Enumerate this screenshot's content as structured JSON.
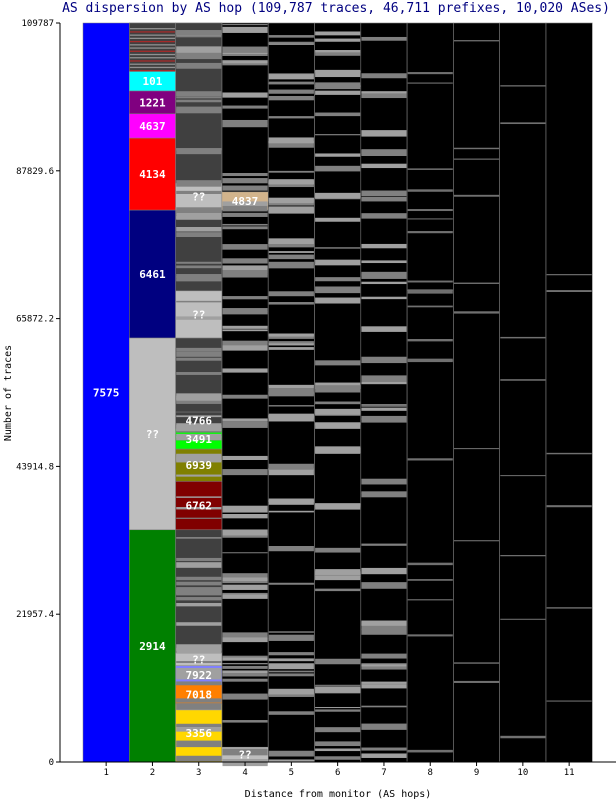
{
  "chart_data": {
    "type": "bar",
    "title": "AS dispersion by AS hop (109,787 traces, 46,711 prefixes, 10,020 ASes)",
    "xlabel": "Distance from monitor (AS hops)",
    "ylabel": "Number of traces",
    "ylim": [
      0,
      109787
    ],
    "yticks": [
      "0",
      "21957.4",
      "43914.8",
      "65872.2",
      "87829.6",
      "109787"
    ],
    "ytick_values": [
      0,
      21957.4,
      43914.8,
      65872.2,
      87829.6,
      109787
    ],
    "categories": [
      "1",
      "2",
      "3",
      "4",
      "5",
      "6",
      "7",
      "8",
      "9",
      "10",
      "11"
    ],
    "segments": [
      {
        "hop": 1,
        "label": "7575",
        "from": 0,
        "to": 109787,
        "color": "#0000ff"
      },
      {
        "hop": 2,
        "label": "2914",
        "from": 0,
        "to": 34500,
        "color": "#008000"
      },
      {
        "hop": 2,
        "label": "??",
        "from": 34500,
        "to": 63000,
        "color": "#bebebe"
      },
      {
        "hop": 2,
        "label": "6461",
        "from": 63000,
        "to": 82000,
        "color": "#000080"
      },
      {
        "hop": 2,
        "label": "4134",
        "from": 82000,
        "to": 92700,
        "color": "#ff0000"
      },
      {
        "hop": 2,
        "label": "4637",
        "from": 92700,
        "to": 96300,
        "color": "#ff00ff"
      },
      {
        "hop": 2,
        "label": "1221",
        "from": 96300,
        "to": 99700,
        "color": "#800080"
      },
      {
        "hop": 2,
        "label": "101",
        "from": 99700,
        "to": 102600,
        "color": "#00ffff"
      },
      {
        "hop": 2,
        "label": "",
        "from": 102600,
        "to": 109787,
        "color": "#404040"
      },
      {
        "hop": 3,
        "label": "3356",
        "from": 0,
        "to": 8600,
        "color": "#ffd700"
      },
      {
        "hop": 3,
        "label": "7018",
        "from": 8600,
        "to": 11500,
        "color": "#ff7f00"
      },
      {
        "hop": 3,
        "label": "7922",
        "from": 11500,
        "to": 14300,
        "color": "#8080ff"
      },
      {
        "hop": 3,
        "label": "??",
        "from": 14300,
        "to": 16200,
        "color": "#bebebe"
      },
      {
        "hop": 3,
        "label": "",
        "from": 16200,
        "to": 34500,
        "color": "#404040"
      },
      {
        "hop": 3,
        "label": "6762",
        "from": 34500,
        "to": 41700,
        "color": "#800000"
      },
      {
        "hop": 3,
        "label": "6939",
        "from": 41700,
        "to": 46500,
        "color": "#808000"
      },
      {
        "hop": 3,
        "label": "3491",
        "from": 46500,
        "to": 49500,
        "color": "#00ff00"
      },
      {
        "hop": 3,
        "label": "4766",
        "from": 49500,
        "to": 52000,
        "color": "#404040"
      },
      {
        "hop": 3,
        "label": "",
        "from": 52000,
        "to": 63000,
        "color": "#404040"
      },
      {
        "hop": 3,
        "label": "??",
        "from": 63000,
        "to": 70000,
        "color": "#bebebe"
      },
      {
        "hop": 3,
        "label": "",
        "from": 70000,
        "to": 82000,
        "color": "#404040"
      },
      {
        "hop": 3,
        "label": "??",
        "from": 82000,
        "to": 86000,
        "color": "#bebebe"
      },
      {
        "hop": 3,
        "label": "",
        "from": 86000,
        "to": 109787,
        "color": "#404040"
      },
      {
        "hop": 4,
        "label": "??",
        "from": 0,
        "to": 2200,
        "color": "#bebebe"
      },
      {
        "hop": 4,
        "label": "4837",
        "from": 82000,
        "to": 84700,
        "color": "#d2b48c"
      }
    ],
    "background_color": "#000000",
    "other_ases_color": "#808080"
  }
}
